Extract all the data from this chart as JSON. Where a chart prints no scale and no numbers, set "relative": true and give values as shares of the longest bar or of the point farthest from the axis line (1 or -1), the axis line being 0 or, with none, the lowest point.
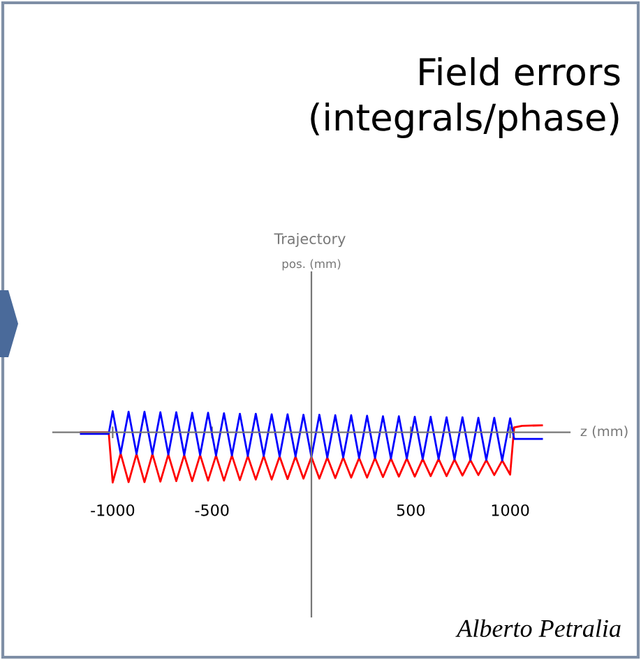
{
  "chart_data": {
    "type": "line",
    "title": "Field errors\n(integrals/phase)",
    "subtitle": "Trajectory",
    "xlabel": "z (mm)",
    "relative": true,
    "xlim": [
      -1300,
      1300
    ],
    "xticks": [
      -1000,
      -500,
      500,
      1000
    ],
    "tick_labels": "x",
    "grid": false,
    "legend": false,
    "marker": "none",
    "line_style": "solid",
    "annotations": [
      "pos. (mm)",
      "Alberto Petralia"
    ],
    "series": [
      {
        "color": "#ff0000",
        "x": [
          -1160,
          -1020,
          -1000,
          -960,
          -920,
          -880,
          -840,
          -800,
          -760,
          -720,
          -680,
          -640,
          -600,
          -560,
          -520,
          -480,
          -440,
          -400,
          -360,
          -320,
          -280,
          -240,
          -200,
          -160,
          -120,
          -80,
          -40,
          0,
          40,
          80,
          120,
          160,
          200,
          240,
          280,
          320,
          360,
          400,
          440,
          480,
          520,
          560,
          600,
          640,
          680,
          720,
          760,
          800,
          840,
          880,
          920,
          960,
          1000,
          1020,
          1060,
          1160
        ],
        "values": [
          0,
          0,
          -1.0,
          -0.42,
          -0.99,
          -0.43,
          -0.99,
          -0.43,
          -0.98,
          -0.44,
          -0.97,
          -0.45,
          -0.97,
          -0.45,
          -0.96,
          -0.46,
          -0.96,
          -0.46,
          -0.95,
          -0.47,
          -0.94,
          -0.47,
          -0.94,
          -0.48,
          -0.93,
          -0.48,
          -0.92,
          -0.49,
          -0.92,
          -0.5,
          -0.91,
          -0.5,
          -0.9,
          -0.51,
          -0.9,
          -0.51,
          -0.89,
          -0.52,
          -0.88,
          -0.52,
          -0.88,
          -0.53,
          -0.87,
          -0.53,
          -0.87,
          -0.54,
          -0.86,
          -0.55,
          -0.85,
          -0.55,
          -0.85,
          -0.56,
          -0.84,
          0.1,
          0.13,
          0.14
        ]
      },
      {
        "color": "#0000ff",
        "x": [
          -1160,
          -1020,
          -1000,
          -960,
          -920,
          -880,
          -840,
          -800,
          -760,
          -720,
          -680,
          -640,
          -600,
          -560,
          -520,
          -480,
          -440,
          -400,
          -360,
          -320,
          -280,
          -240,
          -200,
          -160,
          -120,
          -80,
          -40,
          0,
          40,
          80,
          120,
          160,
          200,
          240,
          280,
          320,
          360,
          400,
          440,
          480,
          520,
          560,
          600,
          640,
          680,
          720,
          760,
          800,
          840,
          880,
          920,
          960,
          1000,
          1020,
          1060,
          1160
        ],
        "values": [
          -0.03,
          -0.03,
          0.42,
          -0.42,
          0.41,
          -0.43,
          0.41,
          -0.43,
          0.4,
          -0.44,
          0.4,
          -0.45,
          0.39,
          -0.45,
          0.39,
          -0.46,
          0.38,
          -0.46,
          0.37,
          -0.47,
          0.37,
          -0.47,
          0.36,
          -0.48,
          0.36,
          -0.48,
          0.35,
          -0.49,
          0.35,
          -0.5,
          0.34,
          -0.5,
          0.34,
          -0.51,
          0.33,
          -0.51,
          0.32,
          -0.52,
          0.32,
          -0.52,
          0.31,
          -0.53,
          0.31,
          -0.53,
          0.3,
          -0.54,
          0.3,
          -0.55,
          0.29,
          -0.55,
          0.29,
          -0.56,
          0.28,
          -0.13,
          -0.13,
          -0.13
        ]
      }
    ]
  }
}
